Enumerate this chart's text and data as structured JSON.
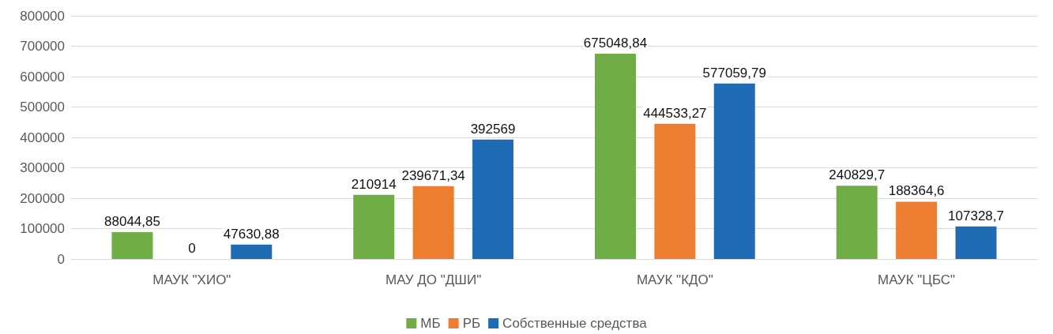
{
  "chart_data": {
    "type": "bar",
    "categories": [
      "МАУК \"ХИО\"",
      "МАУ ДО \"ДШИ\"",
      "МАУК \"КДО\"",
      "МАУК \"ЦБС\""
    ],
    "series": [
      {
        "name": "МБ",
        "color": "#70ad47",
        "values": [
          88044.85,
          210914,
          675048.84,
          240829.7
        ],
        "value_labels": [
          "88044,85",
          "210914",
          "675048,84",
          "240829,7"
        ]
      },
      {
        "name": "РБ",
        "color": "#ed7d31",
        "values": [
          0,
          239671.34,
          444533.27,
          188364.6
        ],
        "value_labels": [
          "0",
          "239671,34",
          "444533,27",
          "188364,6"
        ]
      },
      {
        "name": "Собственные средства",
        "color": "#1f6cb4",
        "values": [
          47630.88,
          392569,
          577059.79,
          107328.7
        ],
        "value_labels": [
          "47630,88",
          "392569",
          "577059,79",
          "107328,7"
        ]
      }
    ],
    "ylim": [
      0,
      800000
    ],
    "yticks": [
      0,
      100000,
      200000,
      300000,
      400000,
      500000,
      600000,
      700000,
      800000
    ],
    "grid": "y",
    "legend": "bottom"
  }
}
